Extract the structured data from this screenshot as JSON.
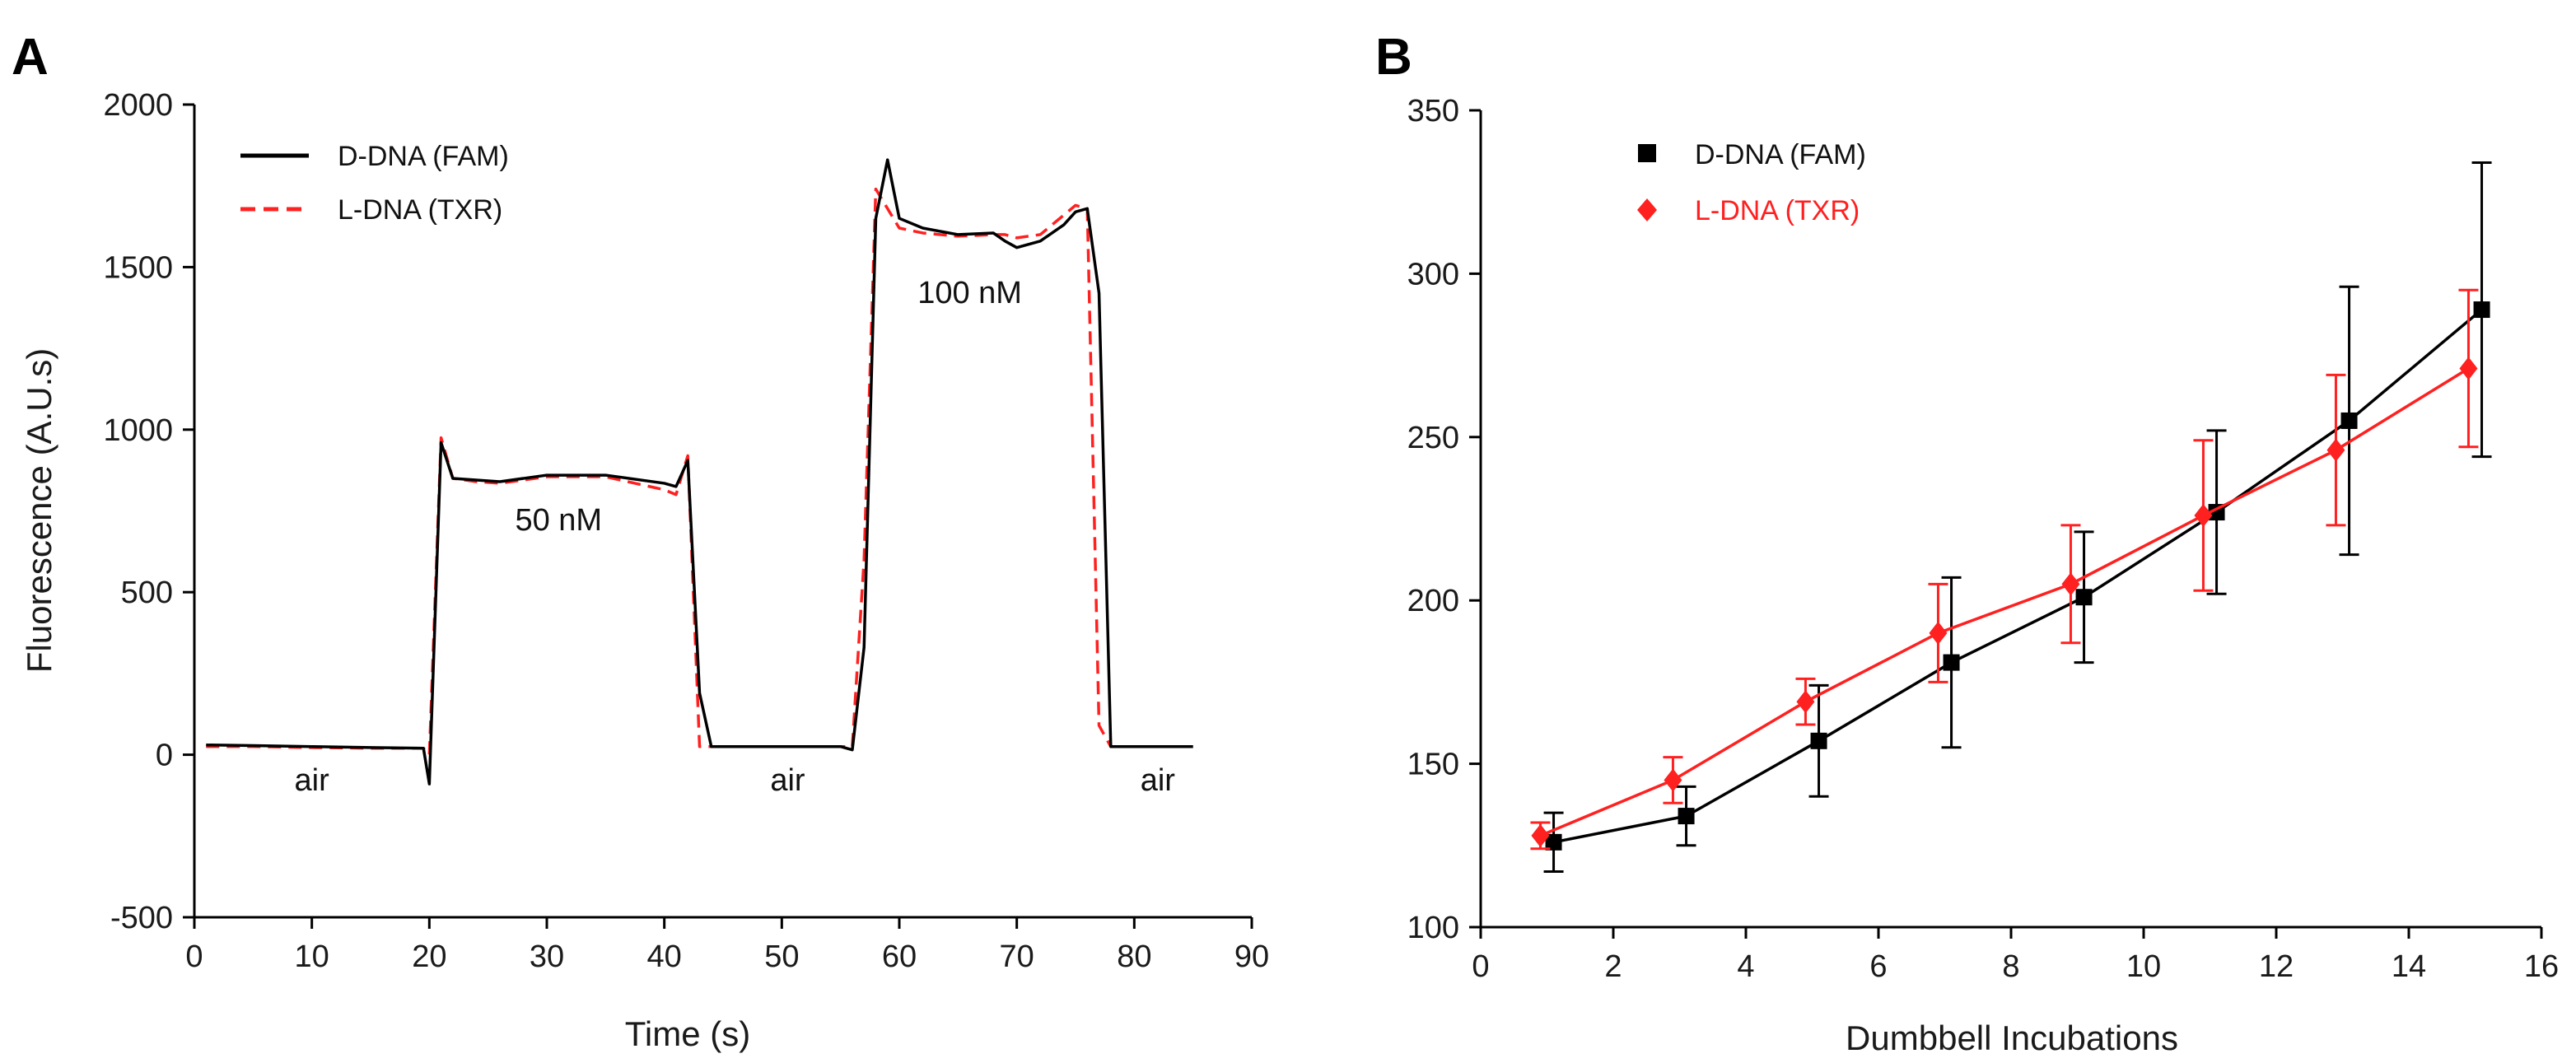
{
  "colors": {
    "d_dna": "#000000",
    "l_dna": "#ff2020"
  },
  "chart_data": [
    {
      "panel": "A",
      "type": "line",
      "title": "",
      "xlabel": "Time (s)",
      "ylabel": "Fluorescence (A.U.s)",
      "xlim": [
        0,
        90
      ],
      "ylim": [
        -500,
        2000
      ],
      "xticks": [
        0,
        10,
        20,
        30,
        40,
        50,
        60,
        70,
        80,
        90
      ],
      "yticks": [
        -500,
        0,
        500,
        1000,
        1500,
        2000
      ],
      "legend_position": "top-left",
      "series": [
        {
          "name": "D-DNA (FAM)",
          "style": "solid",
          "x": [
            1,
            5,
            10,
            15,
            19.5,
            20,
            21,
            22,
            24,
            26,
            30,
            35,
            40,
            41,
            42,
            43,
            44,
            50,
            55,
            56,
            57,
            58,
            59,
            60,
            62,
            65,
            68,
            69,
            70,
            72,
            74,
            75,
            76,
            77,
            78,
            80,
            85
          ],
          "y": [
            30,
            28,
            25,
            22,
            20,
            -90,
            960,
            850,
            845,
            840,
            860,
            860,
            835,
            825,
            905,
            190,
            25,
            25,
            25,
            15,
            330,
            1650,
            1830,
            1650,
            1620,
            1600,
            1605,
            1580,
            1560,
            1580,
            1630,
            1670,
            1680,
            1420,
            25,
            25,
            25
          ]
        },
        {
          "name": "L-DNA (TXR)",
          "style": "dashed",
          "x": [
            1,
            5,
            10,
            15,
            19.5,
            20,
            21,
            22,
            24,
            26,
            30,
            35,
            40,
            41,
            42,
            43,
            44,
            50,
            55,
            56,
            57,
            58,
            59,
            60,
            62,
            65,
            68,
            69,
            70,
            72,
            74,
            75,
            76,
            77,
            78,
            80,
            85
          ],
          "y": [
            25,
            25,
            22,
            20,
            20,
            0,
            975,
            850,
            840,
            835,
            855,
            855,
            815,
            800,
            920,
            25,
            25,
            25,
            25,
            25,
            600,
            1740,
            1680,
            1620,
            1605,
            1595,
            1600,
            1600,
            1590,
            1600,
            1660,
            1690,
            1680,
            90,
            25,
            25,
            25
          ]
        }
      ],
      "annotations": [
        {
          "text": "air",
          "x": 10,
          "y": -110
        },
        {
          "text": "50 nM",
          "x": 31,
          "y": 690
        },
        {
          "text": "air",
          "x": 50.5,
          "y": -110
        },
        {
          "text": "100 nM",
          "x": 66,
          "y": 1390
        },
        {
          "text": "air",
          "x": 82,
          "y": -110
        }
      ]
    },
    {
      "panel": "B",
      "type": "scatter",
      "title": "",
      "xlabel": "Dumbbell Incubations",
      "ylabel": "",
      "xlim": [
        0,
        16
      ],
      "ylim": [
        100,
        350
      ],
      "xticks": [
        0,
        2,
        4,
        6,
        8,
        10,
        12,
        14,
        16
      ],
      "yticks": [
        100,
        150,
        200,
        250,
        300,
        350
      ],
      "legend_position": "top-left",
      "series": [
        {
          "name": "D-DNA (FAM)",
          "marker": "square",
          "x": [
            1.1,
            3.1,
            5.1,
            7.1,
            9.1,
            11.1,
            13.1,
            15.1
          ],
          "y": [
            126,
            134,
            157,
            181,
            201,
            227,
            255,
            289
          ],
          "error": [
            9,
            9,
            17,
            26,
            20,
            25,
            41,
            45
          ]
        },
        {
          "name": "L-DNA (TXR)",
          "marker": "diamond",
          "x": [
            0.9,
            2.9,
            4.9,
            6.9,
            8.9,
            10.9,
            12.9,
            14.9
          ],
          "y": [
            128,
            145,
            169,
            190,
            205,
            226,
            246,
            271
          ],
          "error": [
            4,
            7,
            7,
            15,
            18,
            23,
            23,
            24
          ]
        }
      ]
    }
  ]
}
